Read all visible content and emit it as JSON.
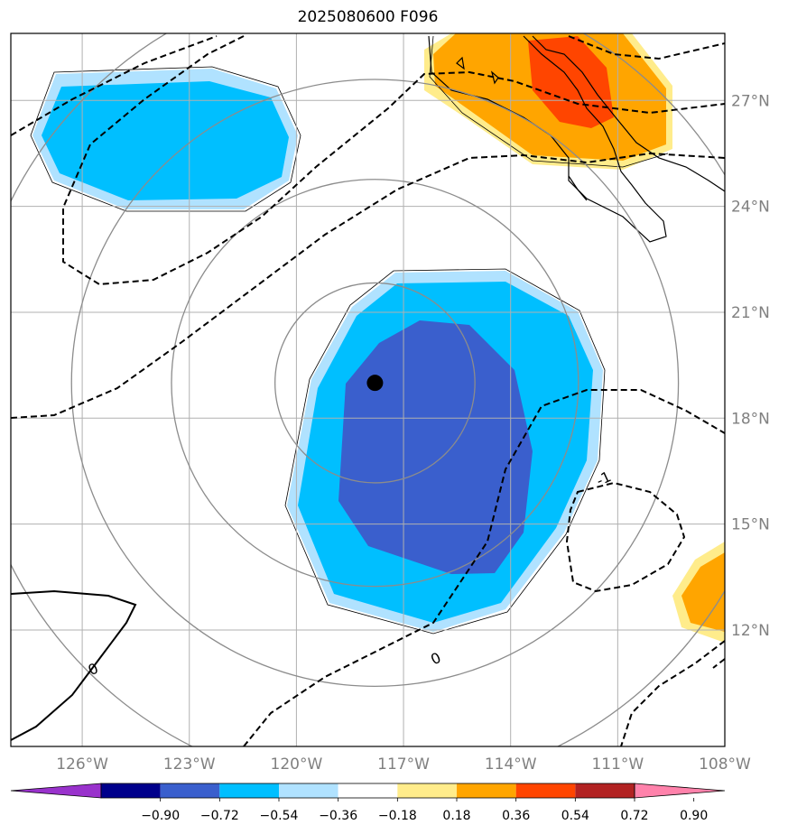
{
  "title": "2025080600 F096",
  "map": {
    "lon_range": [
      -128,
      -108
    ],
    "lat_range": [
      8.7,
      28.9
    ],
    "lon_ticks": [
      {
        "value": -126,
        "label": "126°W"
      },
      {
        "value": -123,
        "label": "123°W"
      },
      {
        "value": -120,
        "label": "120°W"
      },
      {
        "value": -117,
        "label": "117°W"
      },
      {
        "value": -114,
        "label": "114°W"
      },
      {
        "value": -111,
        "label": "111°W"
      },
      {
        "value": -108,
        "label": "108°W"
      }
    ],
    "lat_ticks": [
      {
        "value": 12,
        "label": "12°N"
      },
      {
        "value": 15,
        "label": "15°N"
      },
      {
        "value": 18,
        "label": "18°N"
      },
      {
        "value": 21,
        "label": "21°N"
      },
      {
        "value": 24,
        "label": "24°N"
      },
      {
        "value": 27,
        "label": "27°N"
      }
    ],
    "grid": true,
    "center": {
      "lon": -117.8,
      "lat": 19.0
    },
    "range_rings_deg": [
      2.8,
      5.7,
      8.5,
      11.4
    ],
    "contour_labels": [
      {
        "text": "0",
        "lon": -116.1,
        "lat": 11.2
      },
      {
        "text": "0",
        "lon": -125.7,
        "lat": 10.9
      },
      {
        "text": "-1",
        "lon": -111.4,
        "lat": 16.3
      }
    ]
  },
  "colorbar": {
    "tick_labels": [
      "−0.90",
      "−0.72",
      "−0.54",
      "−0.36",
      "−0.18",
      "0.18",
      "0.36",
      "0.54",
      "0.72",
      "0.90"
    ],
    "colors": [
      "#9932cc",
      "#00008b",
      "#3a5fcd",
      "#00bfff",
      "#b0e2ff",
      "#ffffff",
      "#ffec8b",
      "#ffa500",
      "#ff4500",
      "#b22222",
      "#ff82ab"
    ]
  }
}
